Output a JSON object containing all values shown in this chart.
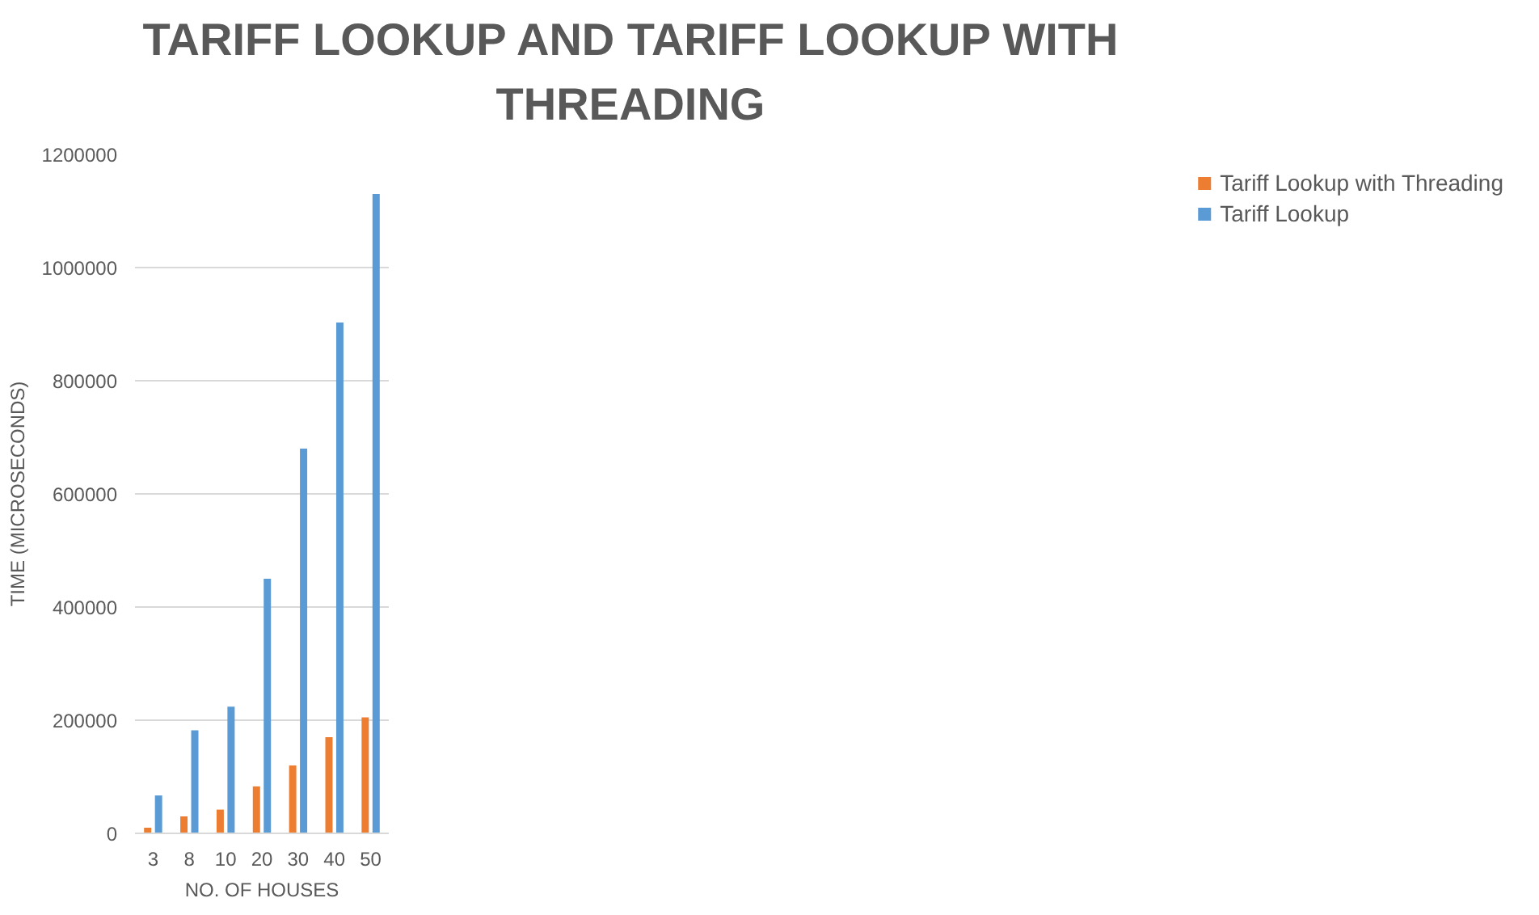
{
  "chart_data": {
    "type": "bar",
    "title": "TARIFF LOOKUP AND TARIFF LOOKUP WITH\nTHREADING",
    "xlabel": "NO. OF HOUSES",
    "ylabel": "TIME (MICROSECONDS)",
    "categories": [
      "3",
      "8",
      "10",
      "20",
      "30",
      "40",
      "50"
    ],
    "series": [
      {
        "name": "Tariff Lookup with Threading",
        "color": "#ed7d31",
        "values": [
          10000,
          30000,
          42000,
          83000,
          120000,
          170000,
          205000
        ]
      },
      {
        "name": "Tariff Lookup",
        "color": "#5b9bd5",
        "values": [
          67000,
          182000,
          224000,
          450000,
          680000,
          903000,
          1130000
        ]
      }
    ],
    "ylim": [
      0,
      1200000
    ],
    "yticks": [
      0,
      200000,
      400000,
      600000,
      800000,
      1000000,
      1200000
    ],
    "grid": "y",
    "legend": "right"
  }
}
